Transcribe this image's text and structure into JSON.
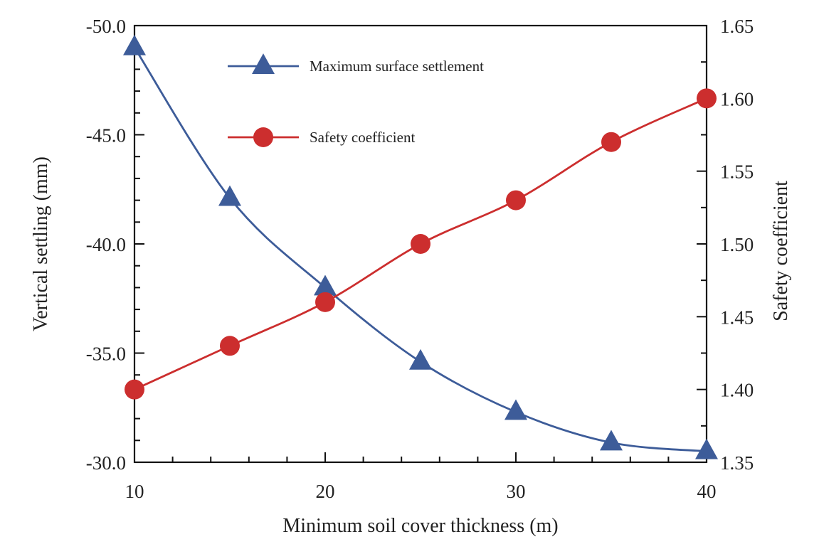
{
  "chart_data": {
    "type": "line",
    "xlabel": "Minimum soil cover thickness (m)",
    "ylabel_left": "Vertical settling (mm)",
    "ylabel_right": "Safety coefficient",
    "xlim": [
      10,
      40
    ],
    "ylim_left": [
      -50,
      -30
    ],
    "ylim_right": [
      1.35,
      1.65
    ],
    "x_ticks": [
      "10",
      "20",
      "30",
      "40"
    ],
    "y_left_ticks": [
      "-50.0",
      "-45.0",
      "-40.0",
      "-35.0",
      "-30.0"
    ],
    "y_right_ticks": [
      "1.65",
      "1.60",
      "1.55",
      "1.50",
      "1.45",
      "1.40",
      "1.35"
    ],
    "x": [
      10,
      15,
      20,
      25,
      30,
      35,
      40
    ],
    "series": [
      {
        "name": "Maximum surface settlement",
        "axis": "left",
        "marker": "triangle",
        "color": "#3d5c99",
        "values": [
          -49.0,
          -42.1,
          -38.0,
          -34.6,
          -32.3,
          -30.9,
          -30.5
        ]
      },
      {
        "name": "Safety coefficient",
        "axis": "right",
        "marker": "circle",
        "color": "#cc2e2e",
        "values": [
          1.4,
          1.43,
          1.46,
          1.5,
          1.53,
          1.57,
          1.6
        ]
      }
    ],
    "legend_position": "top-center",
    "grid": false
  }
}
